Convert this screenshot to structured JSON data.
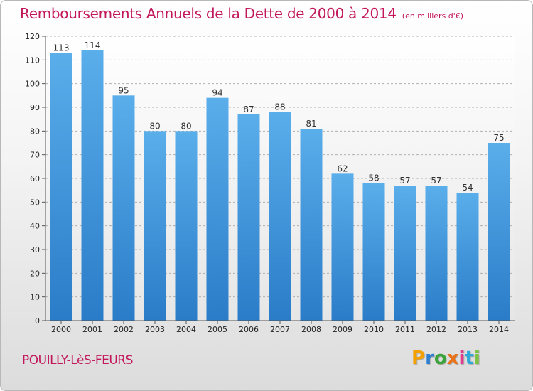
{
  "chart_data": {
    "type": "bar",
    "title": "Remboursements Annuels de la Dette de 2000 à 2014",
    "unit": "(en milliers d'€)",
    "categories": [
      "2000",
      "2001",
      "2002",
      "2003",
      "2004",
      "2005",
      "2006",
      "2007",
      "2008",
      "2009",
      "2010",
      "2011",
      "2012",
      "2013",
      "2014"
    ],
    "values": [
      113,
      114,
      95,
      80,
      80,
      94,
      87,
      88,
      81,
      62,
      58,
      57,
      57,
      54,
      75
    ],
    "ylim": [
      0,
      120
    ],
    "yticks": [
      0,
      10,
      20,
      30,
      40,
      50,
      60,
      70,
      80,
      90,
      100,
      110,
      120
    ],
    "grid": true,
    "bar_color": "#3a8fd8"
  },
  "footer": {
    "commune": "POUILLY-LèS-FEURS"
  },
  "logo": {
    "letters": [
      "P",
      "r",
      "o",
      "x",
      "i",
      "t",
      "i"
    ],
    "colors": [
      "#f4a000",
      "#2e7fd0",
      "#3aa43a",
      "#e8731a",
      "#e23a8c",
      "#2ea8d8",
      "#7cc243"
    ]
  }
}
